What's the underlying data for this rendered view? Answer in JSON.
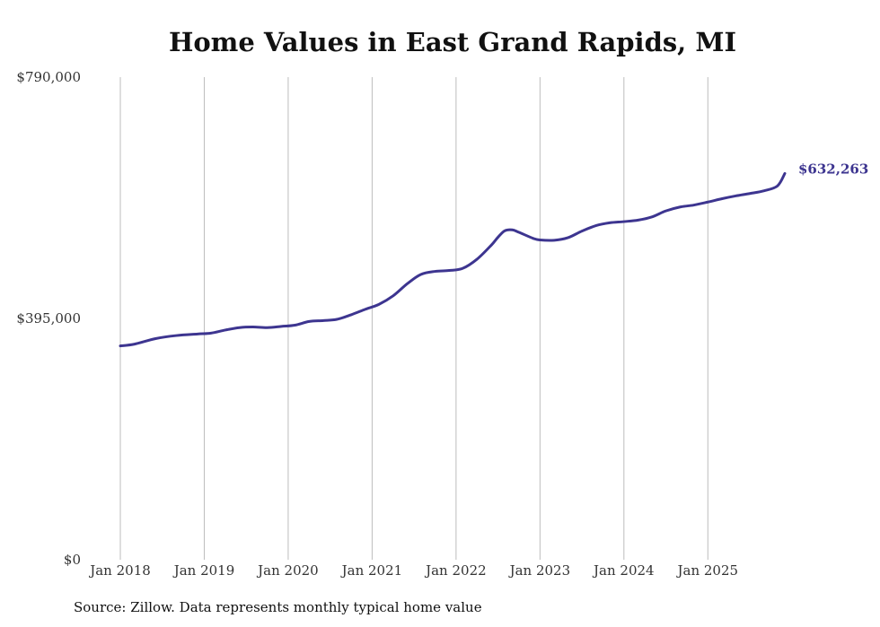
{
  "chart_data": {
    "type": "line",
    "title": "Home Values in East Grand Rapids, MI",
    "xlabel": "",
    "ylabel": "",
    "ylim": [
      0,
      790000
    ],
    "y_ticks": [
      0,
      395000,
      790000
    ],
    "y_tick_labels": [
      "$0",
      "$395,000",
      "$790,000"
    ],
    "x_range": [
      2018.0,
      2025.917
    ],
    "x_ticks": [
      2018,
      2019,
      2020,
      2021,
      2022,
      2023,
      2024,
      2025
    ],
    "x_tick_labels": [
      "Jan 2018",
      "Jan 2019",
      "Jan 2020",
      "Jan 2021",
      "Jan 2022",
      "Jan 2023",
      "Jan 2024",
      "Jan 2025"
    ],
    "grid": "vertical",
    "series": [
      {
        "name": "Typical home value",
        "color": "#3d3590",
        "end_label": "$632,263",
        "points": [
          [
            2018.0,
            350000
          ],
          [
            2018.17,
            353000
          ],
          [
            2018.42,
            362000
          ],
          [
            2018.67,
            367000
          ],
          [
            2018.92,
            369500
          ],
          [
            2019.08,
            371000
          ],
          [
            2019.25,
            376000
          ],
          [
            2019.42,
            380000
          ],
          [
            2019.58,
            381000
          ],
          [
            2019.75,
            380000
          ],
          [
            2019.92,
            382000
          ],
          [
            2020.08,
            384000
          ],
          [
            2020.25,
            390000
          ],
          [
            2020.42,
            391500
          ],
          [
            2020.58,
            393500
          ],
          [
            2020.75,
            401000
          ],
          [
            2020.92,
            410000
          ],
          [
            2021.08,
            418000
          ],
          [
            2021.25,
            432000
          ],
          [
            2021.42,
            452000
          ],
          [
            2021.58,
            467000
          ],
          [
            2021.75,
            472000
          ],
          [
            2021.92,
            473500
          ],
          [
            2022.08,
            477000
          ],
          [
            2022.25,
            492000
          ],
          [
            2022.42,
            515000
          ],
          [
            2022.5,
            528000
          ],
          [
            2022.58,
            538500
          ],
          [
            2022.67,
            540000
          ],
          [
            2022.75,
            536000
          ],
          [
            2022.92,
            526000
          ],
          [
            2023.0,
            523500
          ],
          [
            2023.17,
            523000
          ],
          [
            2023.33,
            527000
          ],
          [
            2023.5,
            538000
          ],
          [
            2023.67,
            547000
          ],
          [
            2023.83,
            551500
          ],
          [
            2024.0,
            553500
          ],
          [
            2024.17,
            556000
          ],
          [
            2024.33,
            561000
          ],
          [
            2024.5,
            571000
          ],
          [
            2024.67,
            577500
          ],
          [
            2024.83,
            580500
          ],
          [
            2025.0,
            585500
          ],
          [
            2025.17,
            591000
          ],
          [
            2025.33,
            595500
          ],
          [
            2025.5,
            599500
          ],
          [
            2025.67,
            604000
          ],
          [
            2025.83,
            612000
          ],
          [
            2025.917,
            632263
          ]
        ]
      }
    ]
  },
  "source_note": "Source: Zillow. Data represents monthly typical home value"
}
